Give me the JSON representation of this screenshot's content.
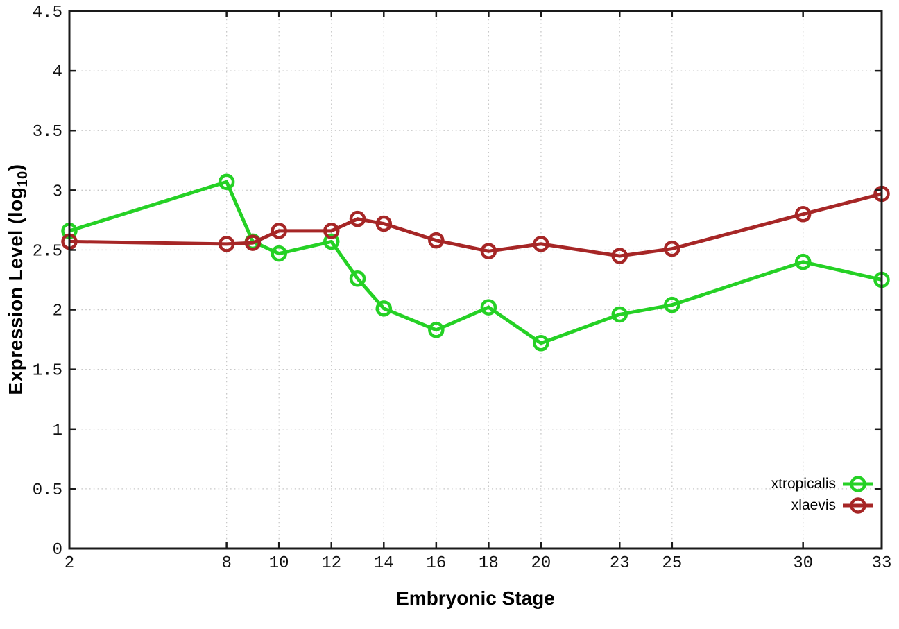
{
  "chart_data": {
    "type": "line",
    "title": "",
    "xlabel": "Embryonic Stage",
    "ylabel_parts": {
      "text": "Expression Level (log",
      "sub": "10",
      "close": ")"
    },
    "xlim": [
      2,
      33
    ],
    "ylim": [
      0,
      4.5
    ],
    "grid": true,
    "grid_style": "dotted",
    "legend_position": "bottom-right",
    "marker": "open-circle",
    "x_ticks": [
      {
        "value": 2,
        "label": "2"
      },
      {
        "value": 8,
        "label": "8"
      },
      {
        "value": 10,
        "label": "10"
      },
      {
        "value": 12,
        "label": "12"
      },
      {
        "value": 14,
        "label": "14"
      },
      {
        "value": 16,
        "label": "16"
      },
      {
        "value": 18,
        "label": "18"
      },
      {
        "value": 20,
        "label": "20"
      },
      {
        "value": 23,
        "label": "23"
      },
      {
        "value": 25,
        "label": "25"
      },
      {
        "value": 30,
        "label": "30"
      },
      {
        "value": 33,
        "label": "33"
      }
    ],
    "y_ticks": [
      {
        "value": 0,
        "label": "0"
      },
      {
        "value": 0.5,
        "label": "0.5"
      },
      {
        "value": 1,
        "label": "1"
      },
      {
        "value": 1.5,
        "label": "1.5"
      },
      {
        "value": 2,
        "label": "2"
      },
      {
        "value": 2.5,
        "label": "2.5"
      },
      {
        "value": 3,
        "label": "3"
      },
      {
        "value": 3.5,
        "label": "3.5"
      },
      {
        "value": 4,
        "label": "4"
      },
      {
        "value": 4.5,
        "label": "4.5"
      }
    ],
    "x": [
      2,
      8,
      9,
      10,
      12,
      13,
      14,
      16,
      18,
      20,
      23,
      25,
      30,
      33
    ],
    "series": [
      {
        "name": "xtropicalis",
        "color": "#25d125",
        "values": [
          2.66,
          3.07,
          2.57,
          2.47,
          2.57,
          2.26,
          2.01,
          1.83,
          2.02,
          1.72,
          1.96,
          2.04,
          2.4,
          2.25
        ]
      },
      {
        "name": "xlaevis",
        "color": "#a62626",
        "values": [
          2.57,
          2.55,
          2.56,
          2.66,
          2.66,
          2.76,
          2.72,
          2.58,
          2.49,
          2.55,
          2.45,
          2.51,
          2.8,
          2.97
        ]
      }
    ],
    "colors": {
      "border": "#1a1a1a",
      "grid": "#c8c8c8",
      "tick": "#1a1a1a",
      "text": "#000000",
      "background": "#ffffff"
    }
  }
}
